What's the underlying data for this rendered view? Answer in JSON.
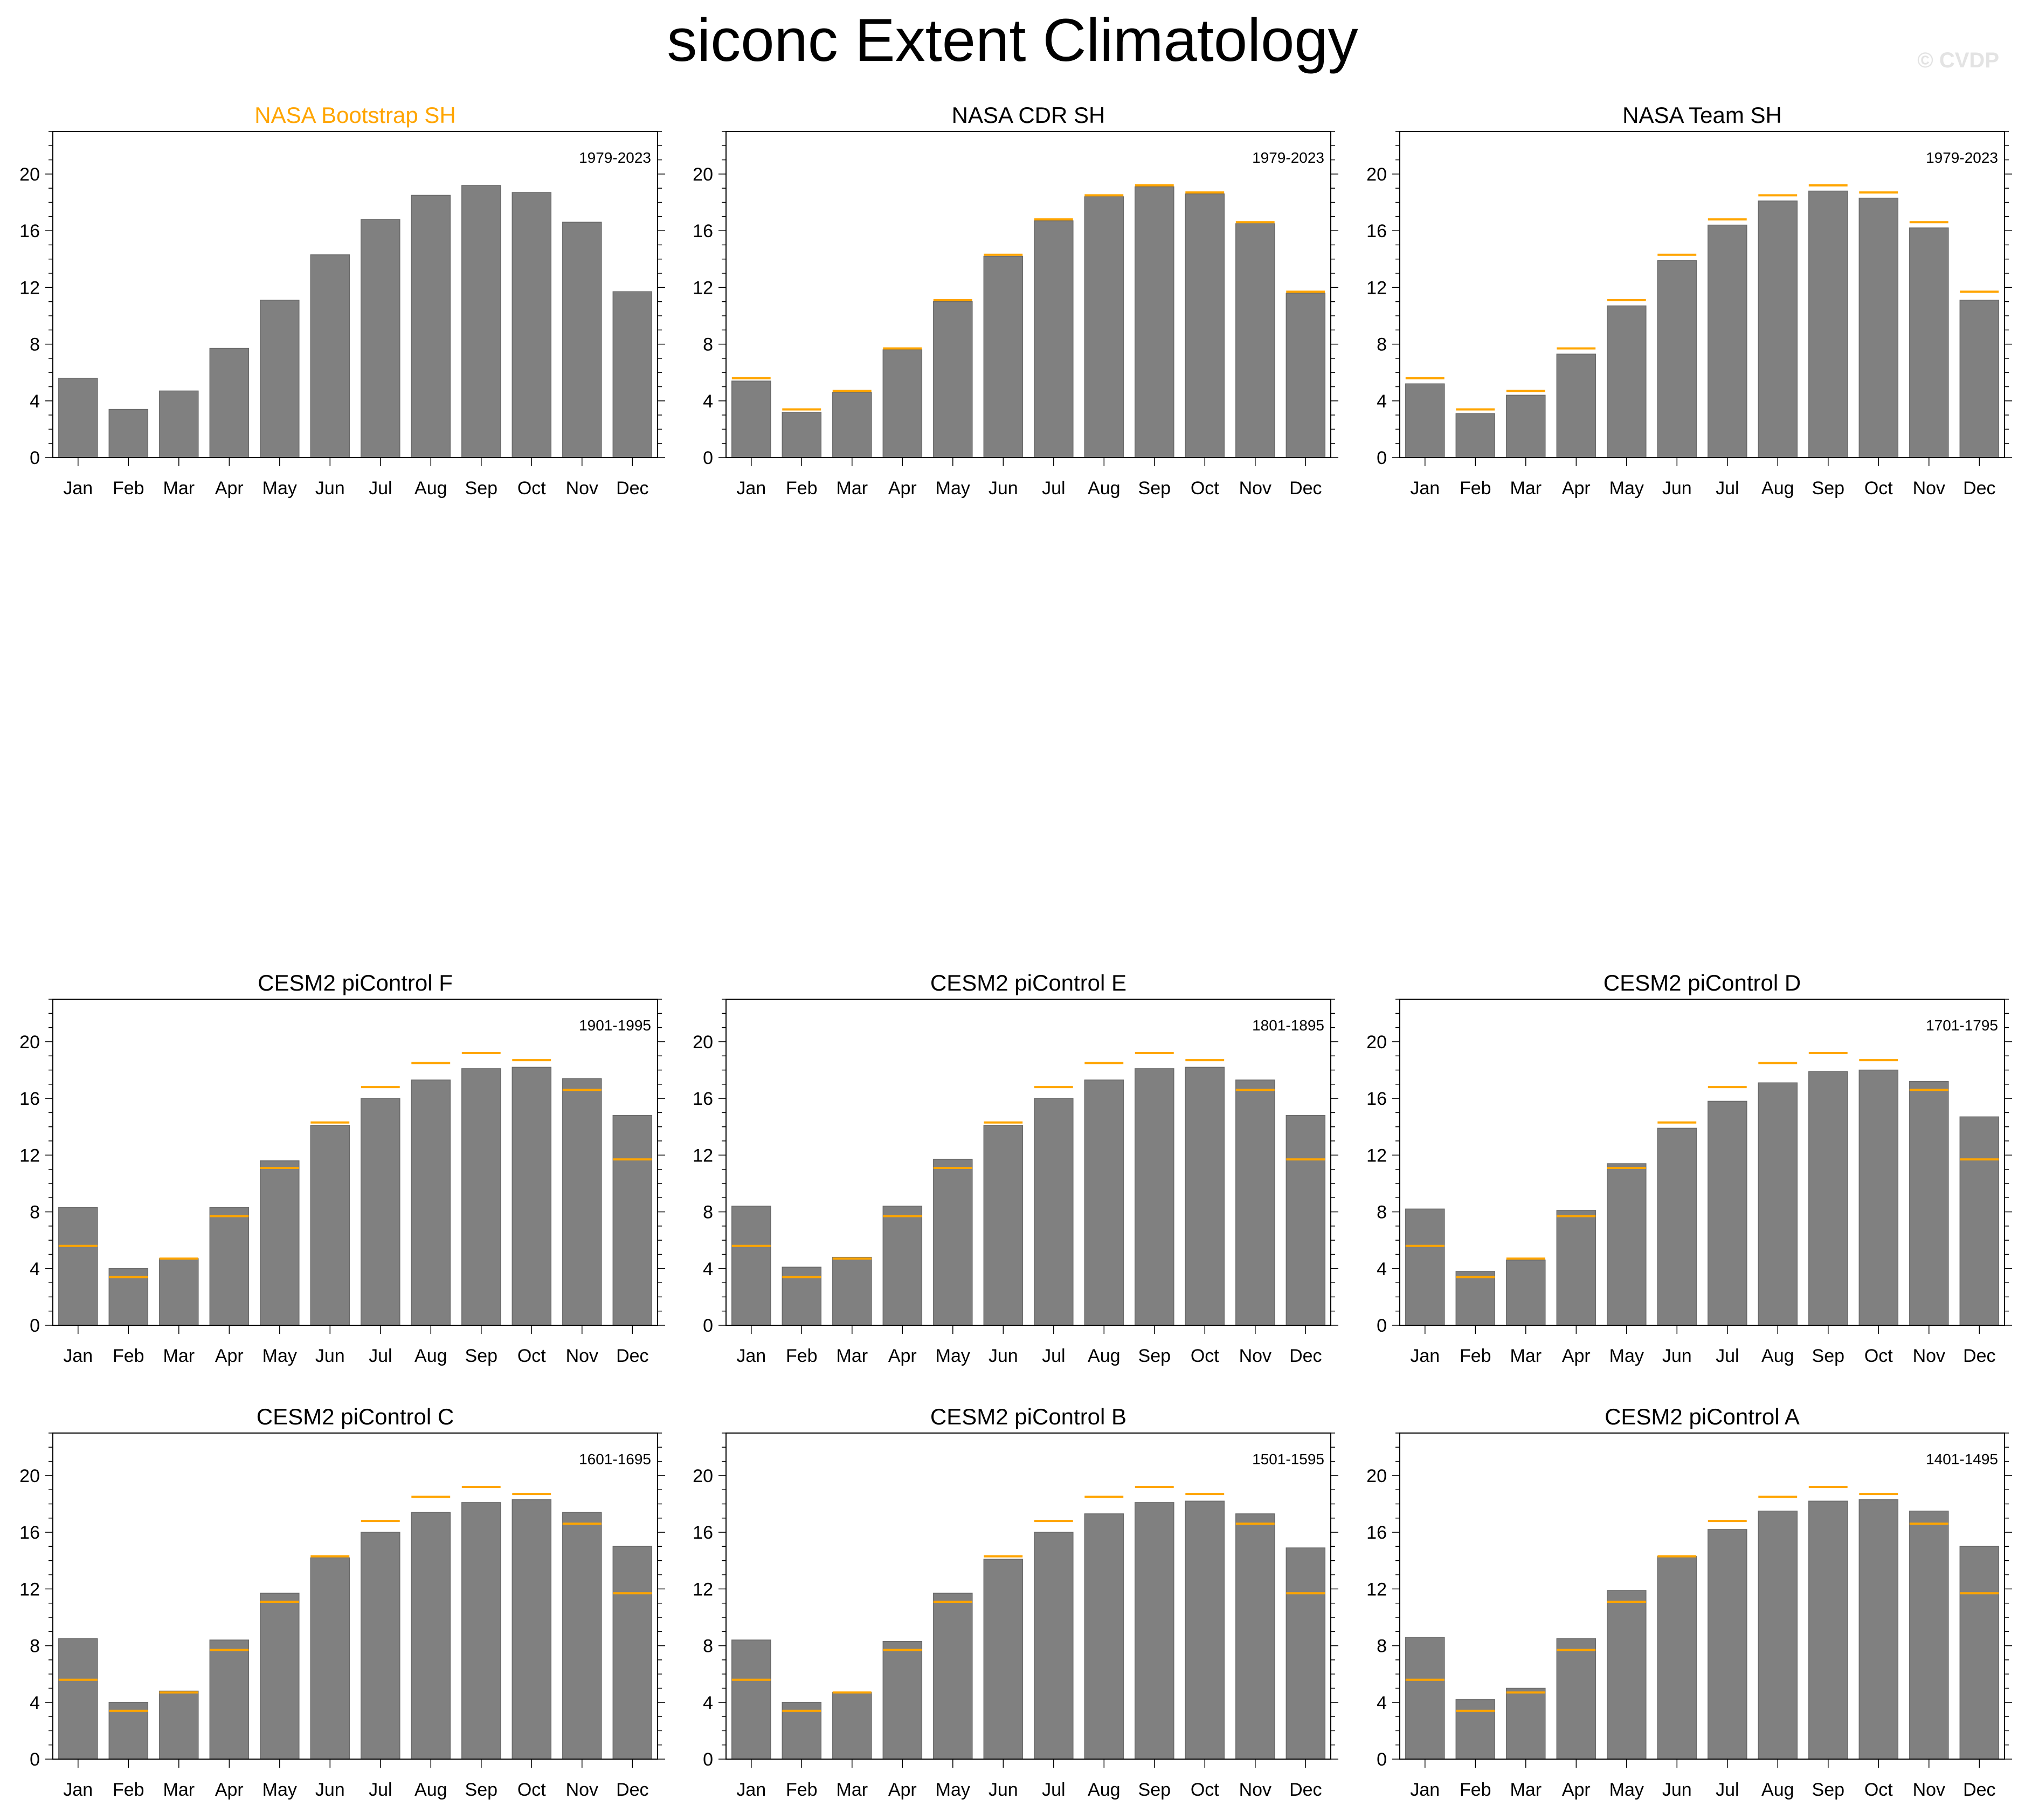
{
  "title": "siconc Extent Climatology",
  "watermark": "© CVDP",
  "colors": {
    "bar": "#808080",
    "reference": "#ffa500",
    "highlight_title": "#ffa500"
  },
  "chart_data": [
    {
      "type": "bar",
      "title": "NASA Bootstrap SH",
      "title_highlight": true,
      "period": "1979-2023",
      "categories": [
        "Jan",
        "Feb",
        "Mar",
        "Apr",
        "May",
        "Jun",
        "Jul",
        "Aug",
        "Sep",
        "Oct",
        "Nov",
        "Dec"
      ],
      "values": [
        5.6,
        3.4,
        4.7,
        7.7,
        11.1,
        14.3,
        16.8,
        18.5,
        19.2,
        18.7,
        16.6,
        11.7
      ],
      "reference": [],
      "yticks": [
        0,
        4,
        8,
        12,
        16,
        20
      ],
      "ylim": [
        0,
        23
      ]
    },
    {
      "type": "bar",
      "title": "NASA CDR SH",
      "title_highlight": false,
      "period": "1979-2023",
      "categories": [
        "Jan",
        "Feb",
        "Mar",
        "Apr",
        "May",
        "Jun",
        "Jul",
        "Aug",
        "Sep",
        "Oct",
        "Nov",
        "Dec"
      ],
      "values": [
        5.4,
        3.2,
        4.6,
        7.6,
        11.0,
        14.2,
        16.7,
        18.4,
        19.1,
        18.6,
        16.5,
        11.6
      ],
      "reference": [
        5.6,
        3.4,
        4.7,
        7.7,
        11.1,
        14.3,
        16.8,
        18.5,
        19.2,
        18.7,
        16.6,
        11.7
      ],
      "yticks": [
        0,
        4,
        8,
        12,
        16,
        20
      ],
      "ylim": [
        0,
        23
      ]
    },
    {
      "type": "bar",
      "title": "NASA Team SH",
      "title_highlight": false,
      "period": "1979-2023",
      "categories": [
        "Jan",
        "Feb",
        "Mar",
        "Apr",
        "May",
        "Jun",
        "Jul",
        "Aug",
        "Sep",
        "Oct",
        "Nov",
        "Dec"
      ],
      "values": [
        5.2,
        3.1,
        4.4,
        7.3,
        10.7,
        13.9,
        16.4,
        18.1,
        18.8,
        18.3,
        16.2,
        11.1
      ],
      "reference": [
        5.6,
        3.4,
        4.7,
        7.7,
        11.1,
        14.3,
        16.8,
        18.5,
        19.2,
        18.7,
        16.6,
        11.7
      ],
      "yticks": [
        0,
        4,
        8,
        12,
        16,
        20
      ],
      "ylim": [
        0,
        23
      ]
    },
    {
      "type": "bar",
      "title": "CESM2 piControl F",
      "title_highlight": false,
      "period": "1901-1995",
      "categories": [
        "Jan",
        "Feb",
        "Mar",
        "Apr",
        "May",
        "Jun",
        "Jul",
        "Aug",
        "Sep",
        "Oct",
        "Nov",
        "Dec"
      ],
      "values": [
        8.3,
        4.0,
        4.7,
        8.3,
        11.6,
        14.1,
        16.0,
        17.3,
        18.1,
        18.2,
        17.4,
        14.8
      ],
      "reference": [
        5.6,
        3.4,
        4.7,
        7.7,
        11.1,
        14.3,
        16.8,
        18.5,
        19.2,
        18.7,
        16.6,
        11.7
      ],
      "yticks": [
        0,
        4,
        8,
        12,
        16,
        20
      ],
      "ylim": [
        0,
        23
      ]
    },
    {
      "type": "bar",
      "title": "CESM2 piControl E",
      "title_highlight": false,
      "period": "1801-1895",
      "categories": [
        "Jan",
        "Feb",
        "Mar",
        "Apr",
        "May",
        "Jun",
        "Jul",
        "Aug",
        "Sep",
        "Oct",
        "Nov",
        "Dec"
      ],
      "values": [
        8.4,
        4.1,
        4.8,
        8.4,
        11.7,
        14.1,
        16.0,
        17.3,
        18.1,
        18.2,
        17.3,
        14.8
      ],
      "reference": [
        5.6,
        3.4,
        4.7,
        7.7,
        11.1,
        14.3,
        16.8,
        18.5,
        19.2,
        18.7,
        16.6,
        11.7
      ],
      "yticks": [
        0,
        4,
        8,
        12,
        16,
        20
      ],
      "ylim": [
        0,
        23
      ]
    },
    {
      "type": "bar",
      "title": "CESM2 piControl D",
      "title_highlight": false,
      "period": "1701-1795",
      "categories": [
        "Jan",
        "Feb",
        "Mar",
        "Apr",
        "May",
        "Jun",
        "Jul",
        "Aug",
        "Sep",
        "Oct",
        "Nov",
        "Dec"
      ],
      "values": [
        8.2,
        3.8,
        4.6,
        8.1,
        11.4,
        13.9,
        15.8,
        17.1,
        17.9,
        18.0,
        17.2,
        14.7
      ],
      "reference": [
        5.6,
        3.4,
        4.7,
        7.7,
        11.1,
        14.3,
        16.8,
        18.5,
        19.2,
        18.7,
        16.6,
        11.7
      ],
      "yticks": [
        0,
        4,
        8,
        12,
        16,
        20
      ],
      "ylim": [
        0,
        23
      ]
    },
    {
      "type": "bar",
      "title": "CESM2 piControl C",
      "title_highlight": false,
      "period": "1601-1695",
      "categories": [
        "Jan",
        "Feb",
        "Mar",
        "Apr",
        "May",
        "Jun",
        "Jul",
        "Aug",
        "Sep",
        "Oct",
        "Nov",
        "Dec"
      ],
      "values": [
        8.5,
        4.0,
        4.8,
        8.4,
        11.7,
        14.2,
        16.0,
        17.4,
        18.1,
        18.3,
        17.4,
        15.0
      ],
      "reference": [
        5.6,
        3.4,
        4.7,
        7.7,
        11.1,
        14.3,
        16.8,
        18.5,
        19.2,
        18.7,
        16.6,
        11.7
      ],
      "yticks": [
        0,
        4,
        8,
        12,
        16,
        20
      ],
      "ylim": [
        0,
        23
      ]
    },
    {
      "type": "bar",
      "title": "CESM2 piControl B",
      "title_highlight": false,
      "period": "1501-1595",
      "categories": [
        "Jan",
        "Feb",
        "Mar",
        "Apr",
        "May",
        "Jun",
        "Jul",
        "Aug",
        "Sep",
        "Oct",
        "Nov",
        "Dec"
      ],
      "values": [
        8.4,
        4.0,
        4.7,
        8.3,
        11.7,
        14.1,
        16.0,
        17.3,
        18.1,
        18.2,
        17.3,
        14.9
      ],
      "reference": [
        5.6,
        3.4,
        4.7,
        7.7,
        11.1,
        14.3,
        16.8,
        18.5,
        19.2,
        18.7,
        16.6,
        11.7
      ],
      "yticks": [
        0,
        4,
        8,
        12,
        16,
        20
      ],
      "ylim": [
        0,
        23
      ]
    },
    {
      "type": "bar",
      "title": "CESM2 piControl A",
      "title_highlight": false,
      "period": "1401-1495",
      "categories": [
        "Jan",
        "Feb",
        "Mar",
        "Apr",
        "May",
        "Jun",
        "Jul",
        "Aug",
        "Sep",
        "Oct",
        "Nov",
        "Dec"
      ],
      "values": [
        8.6,
        4.2,
        5.0,
        8.5,
        11.9,
        14.3,
        16.2,
        17.5,
        18.2,
        18.3,
        17.5,
        15.0
      ],
      "reference": [
        5.6,
        3.4,
        4.7,
        7.7,
        11.1,
        14.3,
        16.8,
        18.5,
        19.2,
        18.7,
        16.6,
        11.7
      ],
      "yticks": [
        0,
        4,
        8,
        12,
        16,
        20
      ],
      "ylim": [
        0,
        23
      ]
    }
  ]
}
